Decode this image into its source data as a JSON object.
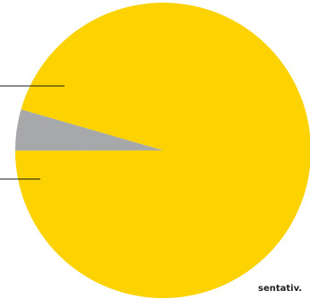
{
  "chart_data": {
    "type": "pie",
    "slices": [
      {
        "value": 95.5,
        "color": "#FCD200"
      },
      {
        "value": 4.5,
        "color": "#A7A8AA"
      }
    ],
    "leader_line_color": "#1a1a1a",
    "footnote": "sentativ."
  }
}
